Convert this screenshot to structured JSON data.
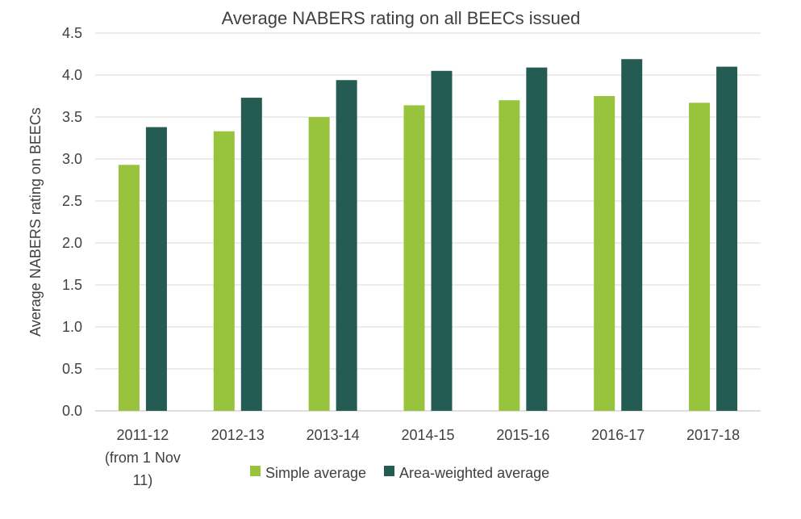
{
  "chart_data": {
    "type": "bar",
    "title": "Average NABERS rating on all BEECs issued",
    "xlabel": "",
    "ylabel": "Average NABERS rating on BEECs",
    "ylim": [
      0,
      4.5
    ],
    "yticks": [
      "0.0",
      "0.5",
      "1.0",
      "1.5",
      "2.0",
      "2.5",
      "3.0",
      "3.5",
      "4.0",
      "4.5"
    ],
    "grid": true,
    "legend_position": "bottom",
    "categories": [
      [
        "2011-12",
        "(from 1 Nov",
        "11)"
      ],
      [
        "2012-13"
      ],
      [
        "2013-14"
      ],
      [
        "2014-15"
      ],
      [
        "2015-16"
      ],
      [
        "2016-17"
      ],
      [
        "2017-18"
      ]
    ],
    "series": [
      {
        "name": "Simple average",
        "color": "#98c33c",
        "values": [
          2.93,
          3.33,
          3.5,
          3.64,
          3.7,
          3.75,
          3.67
        ]
      },
      {
        "name": "Area-weighted average",
        "color": "#245b53",
        "values": [
          3.38,
          3.73,
          3.94,
          4.05,
          4.09,
          4.19,
          4.1
        ]
      }
    ]
  }
}
